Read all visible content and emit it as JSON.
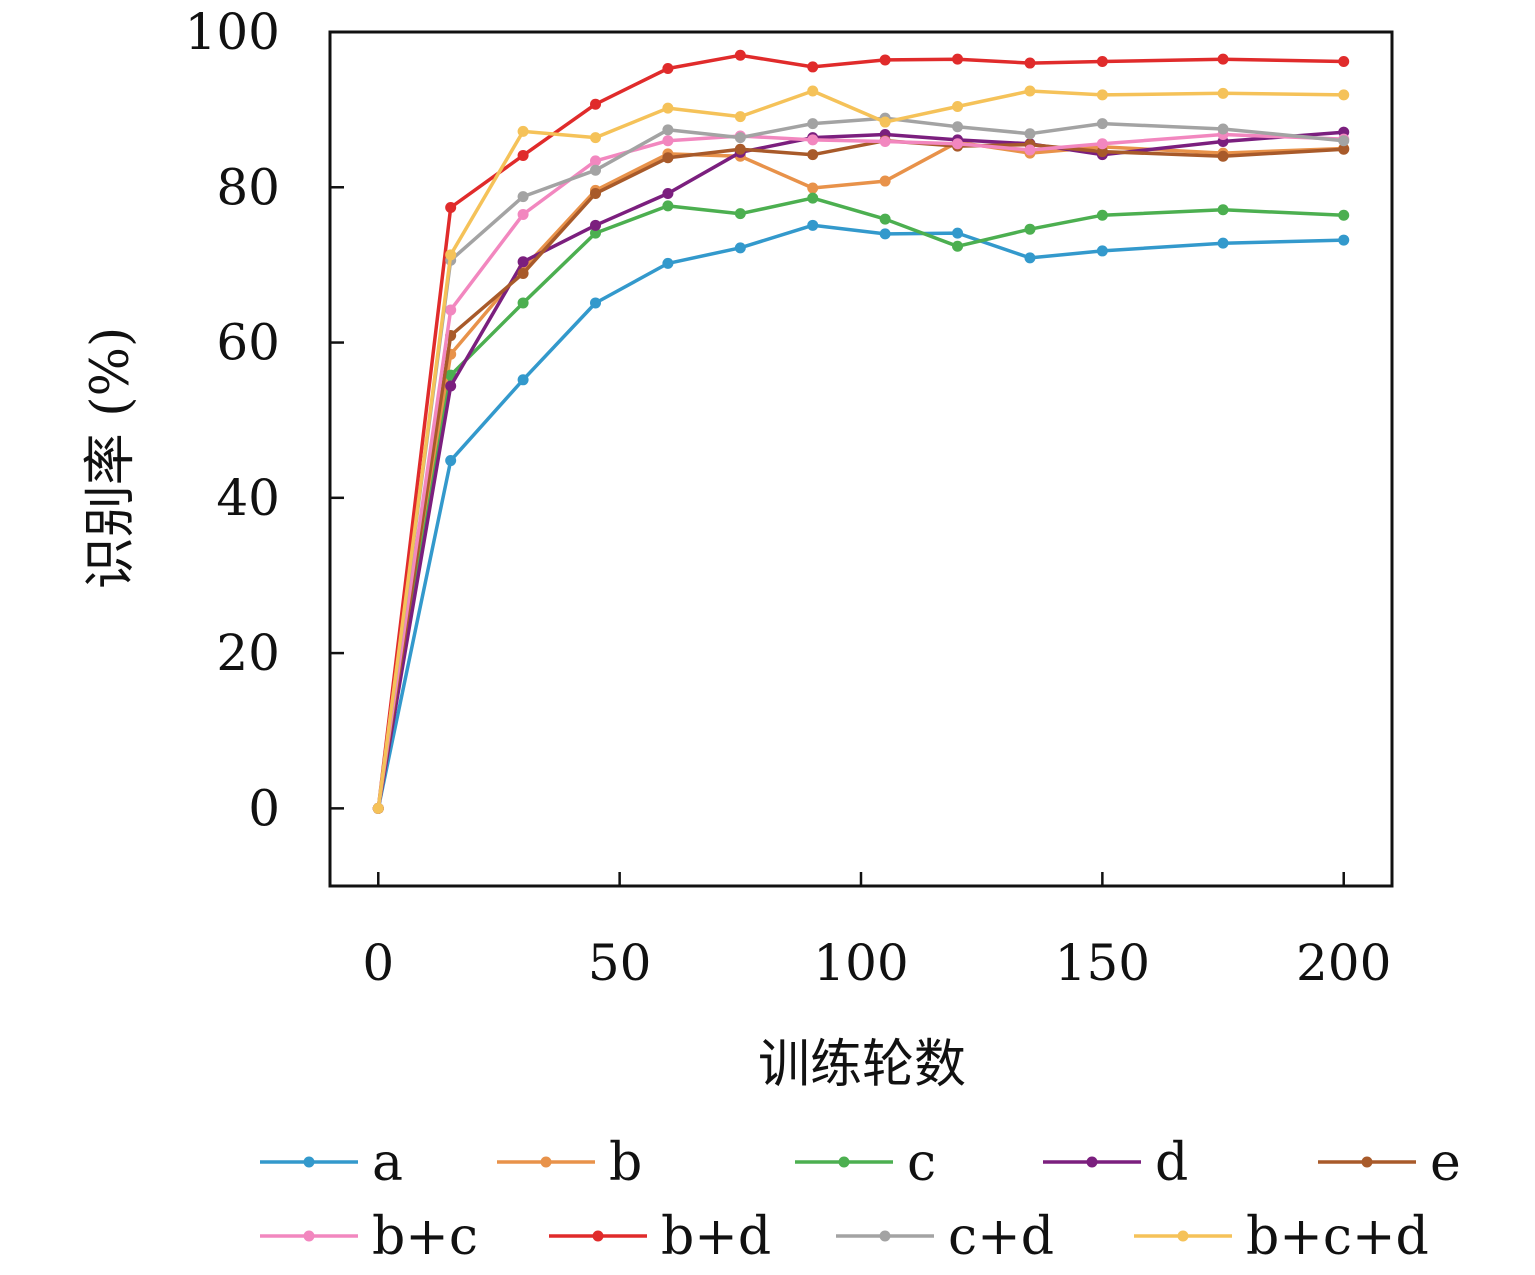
{
  "chart_data": {
    "type": "line",
    "xlabel": "训练轮数",
    "ylabel": "识别率 (%)",
    "xlim": [
      -10,
      210
    ],
    "ylim": [
      -10,
      100
    ],
    "xticks": [
      0,
      50,
      100,
      150,
      200
    ],
    "yticks": [
      0,
      20,
      40,
      60,
      80,
      100
    ],
    "grid": false,
    "legend_position": "bottom",
    "x": [
      0,
      15,
      30,
      45,
      60,
      75,
      90,
      105,
      120,
      135,
      150,
      175,
      200
    ],
    "series": [
      {
        "name": "a",
        "color": "#3399cc",
        "values": [
          0,
          44.8,
          55.2,
          65.1,
          70.2,
          72.2,
          75.1,
          74.0,
          74.1,
          70.9,
          71.8,
          72.8,
          73.2
        ]
      },
      {
        "name": "b",
        "color": "#e8924a",
        "values": [
          0,
          58.5,
          69.5,
          79.6,
          84.3,
          84.0,
          79.9,
          80.8,
          85.8,
          84.4,
          85.2,
          84.4,
          85.0
        ]
      },
      {
        "name": "c",
        "color": "#4caf50",
        "values": [
          0,
          55.8,
          65.1,
          74.1,
          77.6,
          76.6,
          78.6,
          75.9,
          72.4,
          74.6,
          76.4,
          77.1,
          76.4
        ]
      },
      {
        "name": "d",
        "color": "#7b1f7e",
        "values": [
          0,
          54.4,
          70.4,
          75.1,
          79.2,
          84.5,
          86.4,
          86.8,
          86.1,
          85.6,
          84.2,
          85.9,
          87.1
        ]
      },
      {
        "name": "e",
        "color": "#a85a2a",
        "values": [
          0,
          60.9,
          68.9,
          79.2,
          83.8,
          84.9,
          84.2,
          86.0,
          85.3,
          85.5,
          84.6,
          84.0,
          84.9
        ]
      },
      {
        "name": "b+c",
        "color": "#f287bf",
        "values": [
          0,
          64.2,
          76.5,
          83.4,
          86.0,
          86.6,
          86.1,
          85.9,
          85.6,
          84.8,
          85.6,
          86.8,
          86.2
        ]
      },
      {
        "name": "b+d",
        "color": "#e02b2b",
        "values": [
          0,
          77.4,
          84.1,
          90.7,
          95.3,
          97.0,
          95.5,
          96.4,
          96.5,
          96.0,
          96.2,
          96.5,
          96.2
        ]
      },
      {
        "name": "c+d",
        "color": "#a3a3a3",
        "values": [
          0,
          70.6,
          78.8,
          82.2,
          87.4,
          86.4,
          88.2,
          88.9,
          87.8,
          86.9,
          88.2,
          87.5,
          86.0
        ]
      },
      {
        "name": "b+c+d",
        "color": "#f5c259",
        "values": [
          0,
          71.3,
          87.2,
          86.4,
          90.2,
          89.1,
          92.4,
          88.4,
          90.4,
          92.4,
          91.9,
          92.1,
          91.9
        ]
      }
    ]
  }
}
